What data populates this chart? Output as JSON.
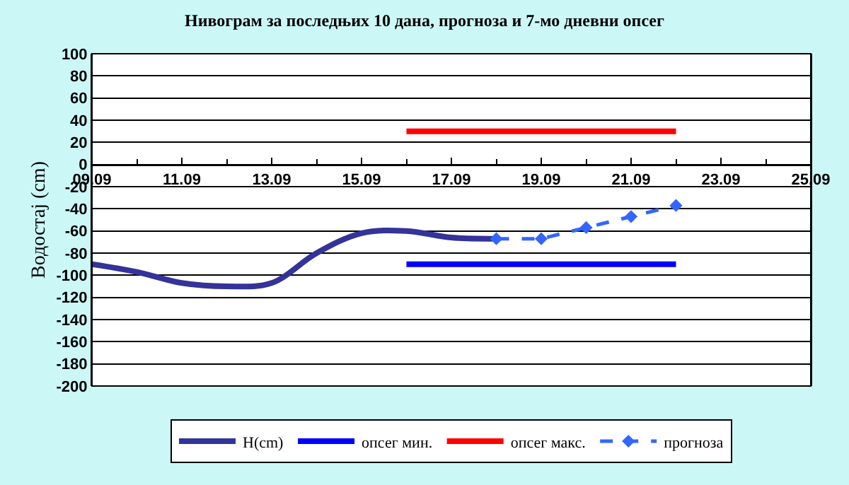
{
  "chart_data": {
    "type": "line",
    "title": "Нивограм за последњих 10 дана, прогноза и 7-мо дневни опсег",
    "ylabel": "Водостај (cm)",
    "xlim": [
      "--09-09",
      "--09-25"
    ],
    "xticks": [
      {
        "value": "--09-09",
        "label": "09.09"
      },
      {
        "value": "--09-11",
        "label": "11.09"
      },
      {
        "value": "--09-13",
        "label": "13.09"
      },
      {
        "value": "--09-15",
        "label": "15.09"
      },
      {
        "value": "--09-17",
        "label": "17.09"
      },
      {
        "value": "--09-19",
        "label": "19.09"
      },
      {
        "value": "--09-21",
        "label": "21.09"
      },
      {
        "value": "--09-23",
        "label": "23.09"
      },
      {
        "value": "--09-25",
        "label": "25.09"
      }
    ],
    "ylim": [
      -200,
      100
    ],
    "yticks": [
      -200,
      -180,
      -160,
      -140,
      -120,
      -100,
      -80,
      -60,
      -40,
      -20,
      0,
      20,
      40,
      60,
      80,
      100
    ],
    "grid": "y",
    "legend": "bottom",
    "series": [
      {
        "name": "H(cm)",
        "color": "#333399",
        "x": [
          "--09-09",
          "--09-10",
          "--09-11",
          "--09-12",
          "--09-13",
          "--09-14",
          "--09-15",
          "--09-16",
          "--09-17",
          "--09-18"
        ],
        "values": [
          -90,
          -97,
          -107,
          -110,
          -107,
          -80,
          -62,
          -60,
          -66,
          -67
        ],
        "marker": "none",
        "line_style": "solid"
      },
      {
        "name": "опсег мин.",
        "color": "#0000ff",
        "x": [
          "--09-16",
          "--09-22"
        ],
        "values": [
          -90,
          -90
        ],
        "marker": "none",
        "line_style": "solid"
      },
      {
        "name": "опсег макс.",
        "color": "#ff0000",
        "x": [
          "--09-16",
          "--09-22"
        ],
        "values": [
          30,
          30
        ],
        "marker": "none",
        "line_style": "solid"
      },
      {
        "name": "прогноза",
        "color": "#3366ff",
        "x": [
          "--09-18",
          "--09-19",
          "--09-20",
          "--09-21",
          "--09-22"
        ],
        "values": [
          -67,
          -67,
          -57,
          -47,
          -37
        ],
        "marker": "diamond",
        "line_style": "dashed"
      }
    ]
  }
}
